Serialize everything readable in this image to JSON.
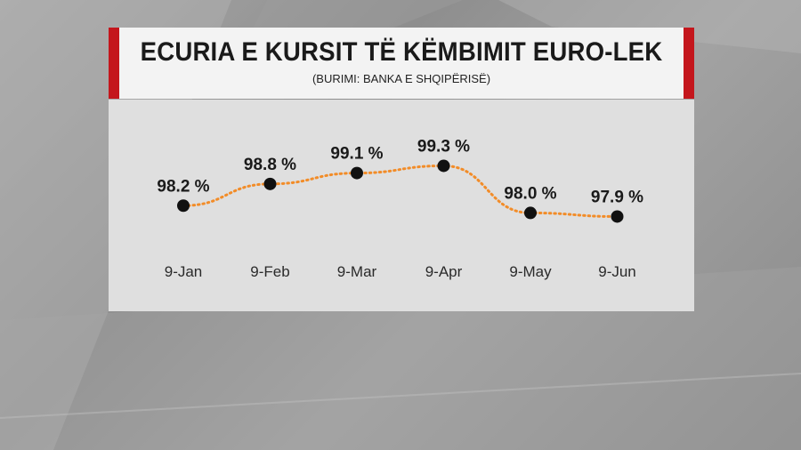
{
  "header": {
    "title": "ECURIA E KURSIT TË KËMBIMIT EURO-LEK",
    "subtitle": "(BURIMI: BANKA E SHQIPËRISË)"
  },
  "colors": {
    "accent_red": "#c4161c",
    "line_orange": "#f28c28",
    "marker": "#111111"
  },
  "chart_data": {
    "type": "line",
    "categories": [
      "9-Jan",
      "9-Feb",
      "9-Mar",
      "9-Apr",
      "9-May",
      "9-Jun"
    ],
    "series": [
      {
        "values": [
          98.2,
          98.8,
          99.1,
          99.3,
          98.0,
          97.9
        ],
        "labels": [
          "98.2 %",
          "98.8 %",
          "99.1 %",
          "99.3 %",
          "98.0 %",
          "97.9 %"
        ]
      }
    ],
    "line_style": "dotted",
    "grid": false,
    "legend": "none",
    "ylim": [
      97.2,
      99.9
    ]
  }
}
